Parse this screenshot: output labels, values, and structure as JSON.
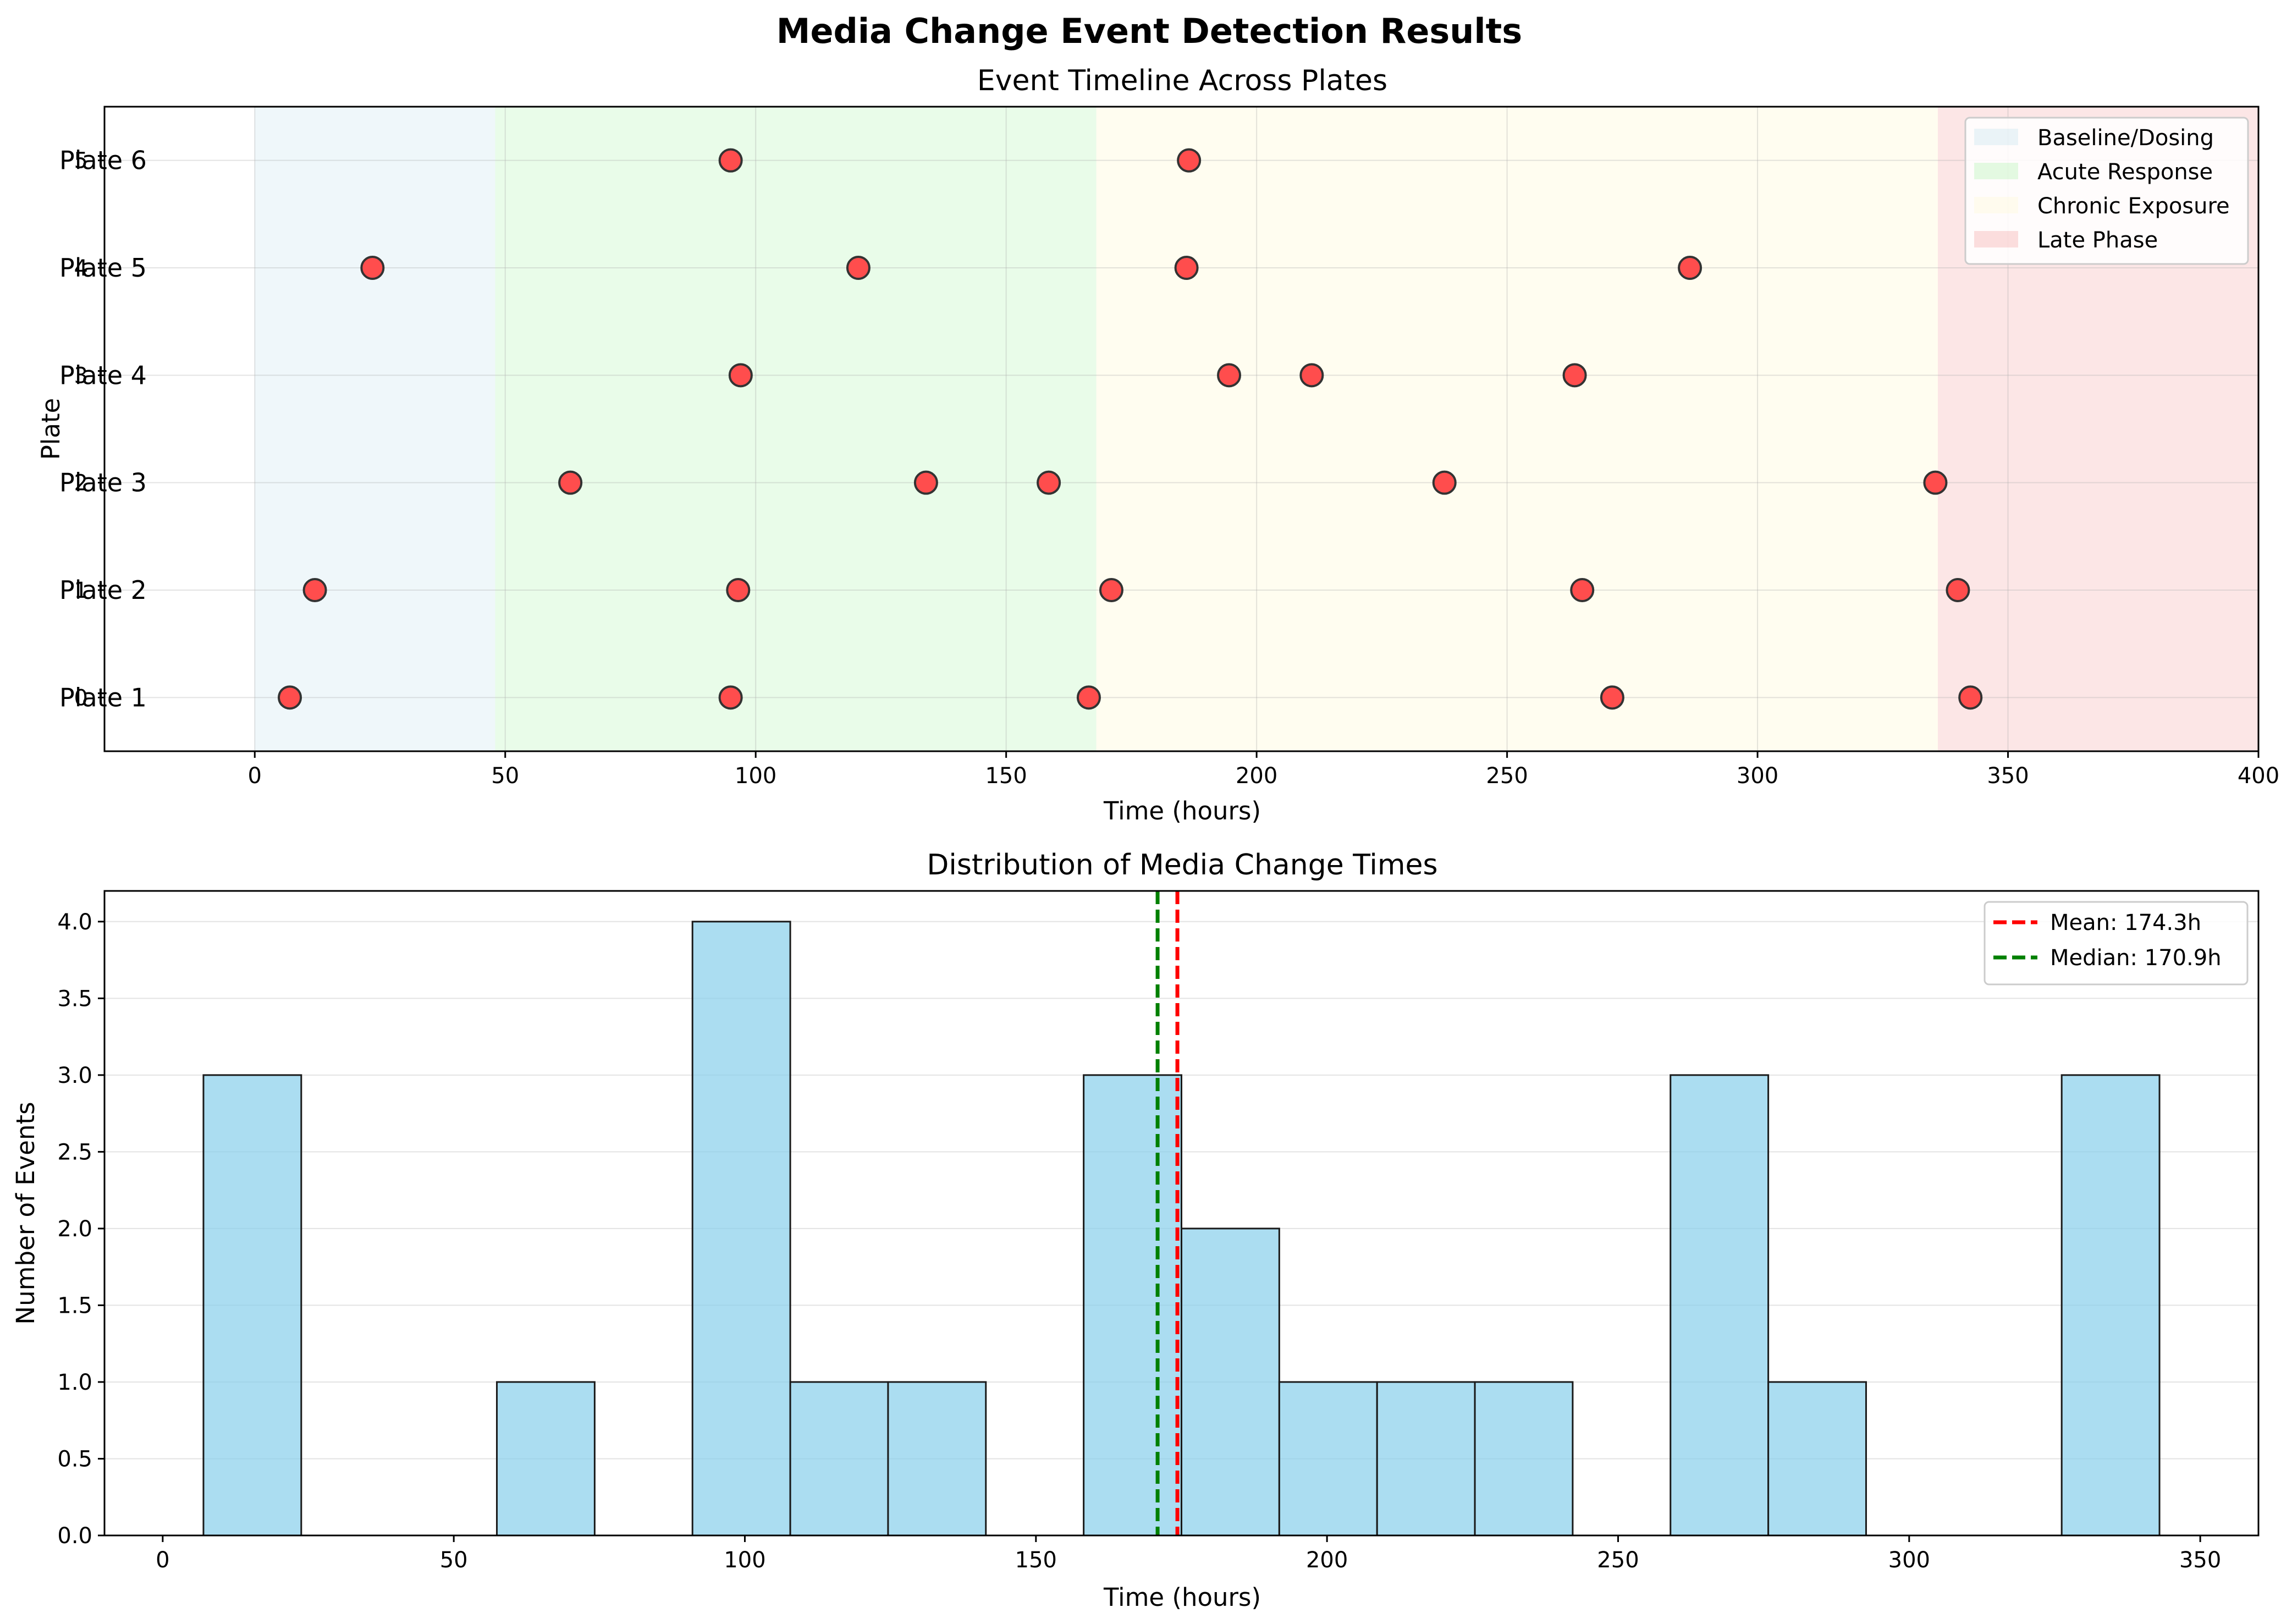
{
  "figure": {
    "suptitle": "Media Change Event Detection Results"
  },
  "chart_data": [
    {
      "type": "scatter",
      "title": "Event Timeline Across Plates",
      "xlabel": "Time (hours)",
      "ylabel": "Plate",
      "xlim": [
        -30,
        400
      ],
      "ylim": [
        -0.5,
        5.5
      ],
      "xticks": [
        0,
        50,
        100,
        150,
        200,
        250,
        300,
        350,
        400
      ],
      "yticks": [
        0,
        1,
        2,
        3,
        4,
        5
      ],
      "ytick_labels": [
        "Plate 1",
        "Plate 2",
        "Plate 3",
        "Plate 4",
        "Plate 5",
        "Plate 6"
      ],
      "grid": true,
      "legend_position": "top-right",
      "phases": [
        {
          "name": "Baseline/Dosing",
          "start": 0,
          "end": 48,
          "color": "#add8e6"
        },
        {
          "name": "Acute Response",
          "start": 48,
          "end": 168,
          "color": "#90ee90"
        },
        {
          "name": "Chronic Exposure",
          "start": 168,
          "end": 336,
          "color": "#fffacd"
        },
        {
          "name": "Late Phase",
          "start": 336,
          "end": 400,
          "color": "#f08080"
        }
      ],
      "marker_color": "#ff4d4d",
      "events": [
        {
          "plate": 0,
          "times": [
            7,
            95,
            166.5,
            271,
            342.5
          ]
        },
        {
          "plate": 1,
          "times": [
            12,
            96.5,
            171,
            265,
            340
          ]
        },
        {
          "plate": 2,
          "times": [
            63,
            134,
            158.5,
            237.5,
            335.5
          ]
        },
        {
          "plate": 3,
          "times": [
            97,
            194.5,
            211,
            263.5
          ]
        },
        {
          "plate": 4,
          "times": [
            23.5,
            120.5,
            186,
            286.5
          ]
        },
        {
          "plate": 5,
          "times": [
            95,
            186.5
          ]
        }
      ]
    },
    {
      "type": "bar",
      "title": "Distribution of Media Change Times",
      "xlabel": "Time (hours)",
      "ylabel": "Number of Events",
      "xlim": [
        -10,
        360
      ],
      "ylim": [
        0,
        4.2
      ],
      "xticks": [
        0,
        50,
        100,
        150,
        200,
        250,
        300,
        350
      ],
      "yticks": [
        0.0,
        0.5,
        1.0,
        1.5,
        2.0,
        2.5,
        3.0,
        3.5,
        4.0
      ],
      "ytick_labels": [
        "0.0",
        "0.5",
        "1.0",
        "1.5",
        "2.0",
        "2.5",
        "3.0",
        "3.5",
        "4.0"
      ],
      "grid": true,
      "bar_color": "#87ceeb",
      "bin_edges": [
        7,
        23.8,
        40.6,
        57.4,
        74.2,
        91,
        107.8,
        124.6,
        141.4,
        158.2,
        175,
        191.8,
        208.6,
        225.4,
        242.2,
        259,
        275.8,
        292.6,
        309.4,
        326.2,
        343
      ],
      "counts": [
        3,
        0,
        0,
        1,
        0,
        4,
        1,
        1,
        0,
        3,
        2,
        1,
        1,
        1,
        0,
        3,
        1,
        0,
        0,
        3
      ],
      "lines": [
        {
          "label": "Mean: 174.3h",
          "value": 174.3,
          "color": "#ff0000"
        },
        {
          "label": "Median: 170.9h",
          "value": 170.9,
          "color": "#008000"
        }
      ],
      "legend_position": "top-right"
    }
  ]
}
